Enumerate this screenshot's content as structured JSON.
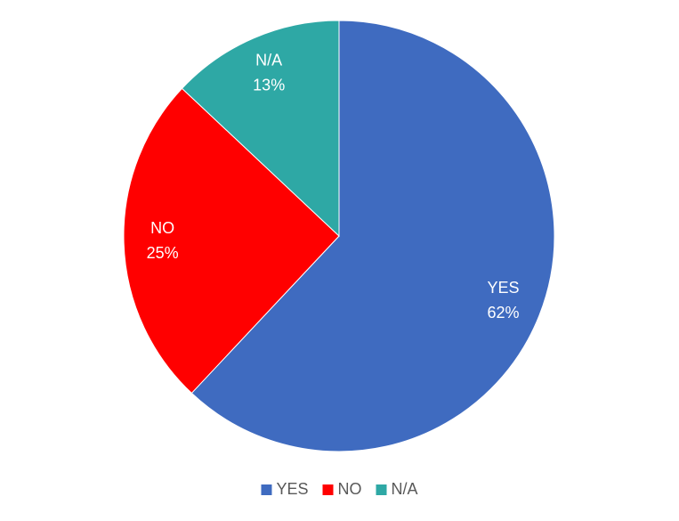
{
  "chart_data": {
    "type": "pie",
    "categories": [
      "YES",
      "NO",
      "N/A"
    ],
    "values": [
      62,
      25,
      13
    ],
    "value_labels": [
      "62%",
      "25%",
      "13%"
    ],
    "colors": [
      "#3F6BC0",
      "#FF0000",
      "#2EA8A5"
    ],
    "legend": "bottom"
  }
}
